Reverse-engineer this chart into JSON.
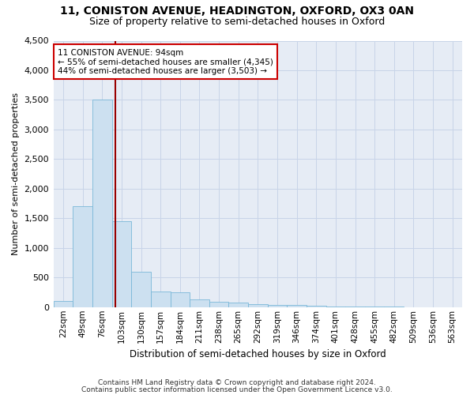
{
  "title1": "11, CONISTON AVENUE, HEADINGTON, OXFORD, OX3 0AN",
  "title2": "Size of property relative to semi-detached houses in Oxford",
  "xlabel": "Distribution of semi-detached houses by size in Oxford",
  "ylabel": "Number of semi-detached properties",
  "footer1": "Contains HM Land Registry data © Crown copyright and database right 2024.",
  "footer2": "Contains public sector information licensed under the Open Government Licence v3.0.",
  "categories": [
    "22sqm",
    "49sqm",
    "76sqm",
    "103sqm",
    "130sqm",
    "157sqm",
    "184sqm",
    "211sqm",
    "238sqm",
    "265sqm",
    "292sqm",
    "319sqm",
    "346sqm",
    "374sqm",
    "401sqm",
    "428sqm",
    "455sqm",
    "482sqm",
    "509sqm",
    "536sqm",
    "563sqm"
  ],
  "values": [
    110,
    1700,
    3500,
    1450,
    600,
    265,
    245,
    130,
    90,
    75,
    55,
    40,
    35,
    20,
    12,
    8,
    5,
    4,
    3,
    2,
    2
  ],
  "bar_color": "#cce0f0",
  "bar_edge_color": "#7ab8d8",
  "annotation_title": "11 CONISTON AVENUE: 94sqm",
  "annotation_line1": "← 55% of semi-detached houses are smaller (4,345)",
  "annotation_line2": "44% of semi-detached houses are larger (3,503) →",
  "annotation_box_facecolor": "#ffffff",
  "annotation_box_edgecolor": "#cc0000",
  "vline_color": "#990000",
  "vline_x": 2.667,
  "ylim": [
    0,
    4500
  ],
  "yticks": [
    0,
    500,
    1000,
    1500,
    2000,
    2500,
    3000,
    3500,
    4000,
    4500
  ],
  "grid_color": "#c8d4e8",
  "bg_color": "#e6ecf5",
  "fig_facecolor": "#ffffff"
}
